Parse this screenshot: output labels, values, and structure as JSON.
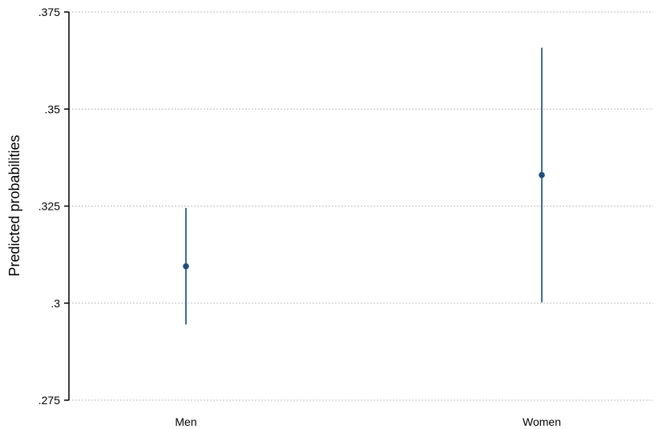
{
  "chart_data": {
    "type": "scatter",
    "ylabel": "Predicted probabilities",
    "xlabel": "",
    "ylim": [
      0.275,
      0.375
    ],
    "yticks": [
      0.275,
      0.3,
      0.325,
      0.35,
      0.375
    ],
    "ytick_labels": [
      ".275",
      ".3",
      ".325",
      ".35",
      ".375"
    ],
    "grid": true,
    "categories": [
      "Men",
      "Women"
    ],
    "points": [
      {
        "category": "Men",
        "value": 0.3095,
        "ci_low": 0.2945,
        "ci_high": 0.3245
      },
      {
        "category": "Women",
        "value": 0.333,
        "ci_low": 0.3002,
        "ci_high": 0.3658
      }
    ],
    "colors": {
      "marker": "#1f4e79",
      "ci": "#3b6f96",
      "axis": "#000000",
      "grid": "#bdbdbd"
    }
  }
}
